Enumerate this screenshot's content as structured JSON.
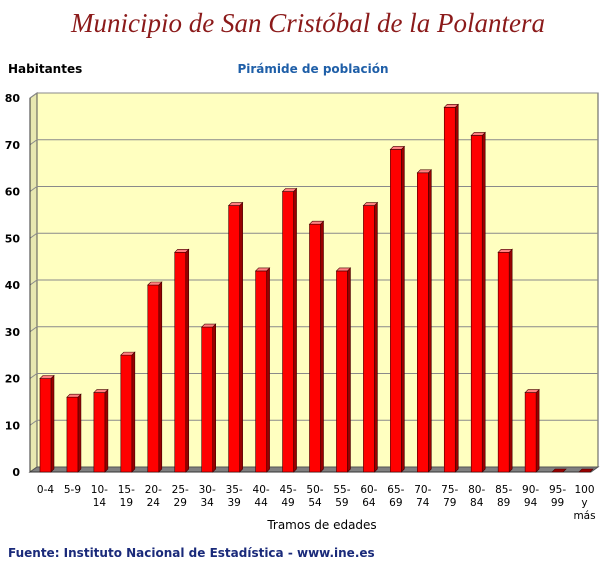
{
  "header": {
    "title": "Municipio de San Cristóbal de la Polantera"
  },
  "footer": {
    "source": "Fuente: Instituto Nacional de Estadística - www.ine.es"
  },
  "chart_data": {
    "type": "bar",
    "title": "Pirámide de población",
    "xlabel": "Tramos de edades",
    "ylabel": "Habitantes",
    "ylim": [
      0,
      80
    ],
    "yticks": [
      0,
      10,
      20,
      30,
      40,
      50,
      60,
      70,
      80
    ],
    "grid": true,
    "categories": [
      [
        "0-4"
      ],
      [
        "5-9"
      ],
      [
        "10-",
        "14"
      ],
      [
        "15-",
        "19"
      ],
      [
        "20-",
        "24"
      ],
      [
        "25-",
        "29"
      ],
      [
        "30-",
        "34"
      ],
      [
        "35-",
        "39"
      ],
      [
        "40-",
        "44"
      ],
      [
        "45-",
        "49"
      ],
      [
        "50-",
        "54"
      ],
      [
        "55-",
        "59"
      ],
      [
        "60-",
        "64"
      ],
      [
        "65-",
        "69"
      ],
      [
        "70-",
        "74"
      ],
      [
        "75-",
        "79"
      ],
      [
        "80-",
        "84"
      ],
      [
        "85-",
        "89"
      ],
      [
        "90-",
        "94"
      ],
      [
        "95-",
        "99"
      ],
      [
        "100",
        "y",
        "más"
      ]
    ],
    "values": [
      20,
      16,
      17,
      25,
      40,
      47,
      31,
      57,
      43,
      60,
      53,
      43,
      57,
      69,
      64,
      78,
      72,
      47,
      17,
      0,
      0
    ],
    "colors": {
      "bar": "#ff0000",
      "bar_top": "#ff8080",
      "bar_side": "#990000",
      "plot_bg": "#ffffc0",
      "floor": "#808080",
      "grid": "#8a8a8a"
    }
  }
}
